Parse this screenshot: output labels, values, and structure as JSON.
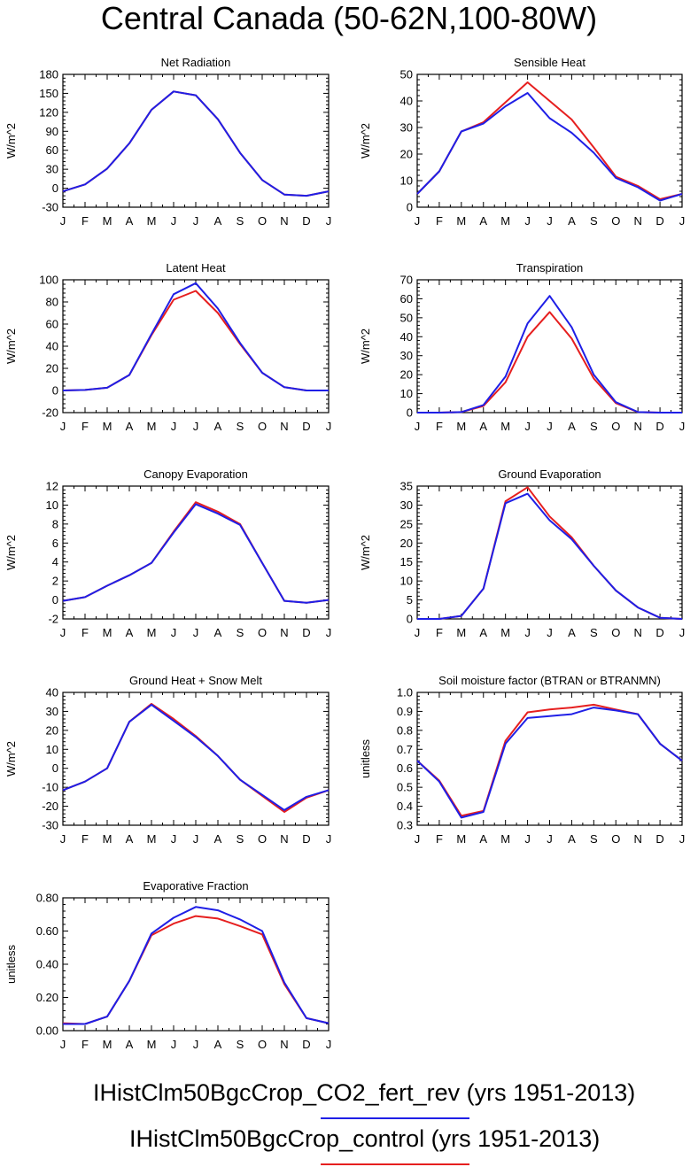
{
  "title": "Central Canada (50-62N,100-80W)",
  "colors": {
    "blue": "#1f1fe6",
    "red": "#e61f1f"
  },
  "legend": {
    "items": [
      {
        "label": "IHistClm50BgcCrop_CO2_fert_rev (yrs 1951-2013)",
        "color": "#1f1fe6"
      },
      {
        "label": "IHistClm50BgcCrop_control (yrs 1951-2013)",
        "color": "#e61f1f"
      }
    ]
  },
  "chart_data": [
    {
      "type": "line",
      "title": "Net Radiation",
      "ylabel": "W/m^2",
      "categories": [
        "J",
        "F",
        "M",
        "A",
        "M",
        "J",
        "J",
        "A",
        "S",
        "O",
        "N",
        "D",
        "J"
      ],
      "ylim": [
        -30,
        180
      ],
      "yticks": [
        -30,
        0,
        30,
        60,
        90,
        120,
        150,
        180
      ],
      "ytick_labels": [
        "-30",
        "0",
        "30",
        "60",
        "90",
        "120",
        "150",
        "180"
      ],
      "series": [
        {
          "color": "red",
          "values": [
            -5,
            6,
            31,
            71,
            124,
            153,
            147,
            109,
            56,
            13,
            -10,
            -12,
            -5
          ]
        },
        {
          "color": "blue",
          "values": [
            -5,
            6,
            31,
            71,
            124,
            153,
            147,
            109,
            56,
            13,
            -10,
            -12,
            -5
          ]
        }
      ]
    },
    {
      "type": "line",
      "title": "Sensible Heat",
      "ylabel": "W/m^2",
      "categories": [
        "J",
        "F",
        "M",
        "A",
        "M",
        "J",
        "J",
        "A",
        "S",
        "O",
        "N",
        "D",
        "J"
      ],
      "ylim": [
        0,
        50
      ],
      "yticks": [
        0,
        10,
        20,
        30,
        40,
        50
      ],
      "ytick_labels": [
        "0",
        "10",
        "20",
        "30",
        "40",
        "50"
      ],
      "series": [
        {
          "color": "red",
          "values": [
            5,
            13.5,
            28.5,
            32,
            39.5,
            47,
            40,
            33,
            22.5,
            11.5,
            8,
            3,
            5
          ]
        },
        {
          "color": "blue",
          "values": [
            5,
            13.5,
            28.5,
            31.5,
            38,
            43,
            33.5,
            28,
            20.5,
            11,
            7.5,
            2.5,
            5
          ]
        }
      ]
    },
    {
      "type": "line",
      "title": "Latent Heat",
      "ylabel": "W/m^2",
      "categories": [
        "J",
        "F",
        "M",
        "A",
        "M",
        "J",
        "J",
        "A",
        "S",
        "O",
        "N",
        "D",
        "J"
      ],
      "ylim": [
        -20,
        100
      ],
      "yticks": [
        -20,
        0,
        20,
        40,
        60,
        80,
        100
      ],
      "ytick_labels": [
        "-20",
        "0",
        "20",
        "40",
        "60",
        "80",
        "100"
      ],
      "series": [
        {
          "color": "red",
          "values": [
            0,
            0.5,
            2.5,
            14,
            50,
            82,
            90,
            70,
            42,
            16,
            3,
            0,
            0
          ]
        },
        {
          "color": "blue",
          "values": [
            0,
            0.5,
            2.5,
            14,
            51,
            87,
            97,
            74,
            43,
            16,
            3,
            0,
            0
          ]
        }
      ]
    },
    {
      "type": "line",
      "title": "Transpiration",
      "ylabel": "W/m^2",
      "categories": [
        "J",
        "F",
        "M",
        "A",
        "M",
        "J",
        "J",
        "A",
        "S",
        "O",
        "N",
        "D",
        "J"
      ],
      "ylim": [
        0,
        70
      ],
      "yticks": [
        0,
        10,
        20,
        30,
        40,
        50,
        60,
        70
      ],
      "ytick_labels": [
        "0",
        "10",
        "20",
        "30",
        "40",
        "50",
        "60",
        "70"
      ],
      "series": [
        {
          "color": "red",
          "values": [
            0,
            0,
            0.3,
            3.5,
            16,
            40,
            53,
            39,
            18,
            5,
            0.3,
            0,
            0
          ]
        },
        {
          "color": "blue",
          "values": [
            0,
            0,
            0.3,
            4,
            19,
            47,
            61.5,
            45,
            20,
            5.5,
            0.3,
            0,
            0
          ]
        }
      ]
    },
    {
      "type": "line",
      "title": "Canopy Evaporation",
      "ylabel": "W/m^2",
      "categories": [
        "J",
        "F",
        "M",
        "A",
        "M",
        "J",
        "J",
        "A",
        "S",
        "O",
        "N",
        "D",
        "J"
      ],
      "ylim": [
        -2,
        12
      ],
      "yticks": [
        -2,
        0,
        2,
        4,
        6,
        8,
        10,
        12
      ],
      "ytick_labels": [
        "-2",
        "0",
        "2",
        "4",
        "6",
        "8",
        "10",
        "12"
      ],
      "series": [
        {
          "color": "red",
          "values": [
            -0.1,
            0.3,
            1.5,
            2.6,
            3.9,
            7.2,
            10.3,
            9.3,
            8,
            3.9,
            -0.1,
            -0.3,
            0
          ]
        },
        {
          "color": "blue",
          "values": [
            -0.1,
            0.3,
            1.5,
            2.6,
            3.9,
            7.1,
            10.1,
            9.1,
            7.9,
            3.9,
            -0.1,
            -0.3,
            0
          ]
        }
      ]
    },
    {
      "type": "line",
      "title": "Ground Evaporation",
      "ylabel": "W/m^2",
      "categories": [
        "J",
        "F",
        "M",
        "A",
        "M",
        "J",
        "J",
        "A",
        "S",
        "O",
        "N",
        "D",
        "J"
      ],
      "ylim": [
        0,
        35
      ],
      "yticks": [
        0,
        5,
        10,
        15,
        20,
        25,
        30,
        35
      ],
      "ytick_labels": [
        "0",
        "5",
        "10",
        "15",
        "20",
        "25",
        "30",
        "35"
      ],
      "series": [
        {
          "color": "red",
          "values": [
            0,
            0,
            0.8,
            8,
            31,
            34.7,
            27,
            21.5,
            14,
            7.5,
            3,
            0.3,
            0
          ]
        },
        {
          "color": "blue",
          "values": [
            0,
            0,
            0.8,
            8,
            30.5,
            33,
            26,
            21,
            14,
            7.5,
            3,
            0.3,
            0
          ]
        }
      ]
    },
    {
      "type": "line",
      "title": "Ground Heat + Snow Melt",
      "ylabel": "W/m^2",
      "categories": [
        "J",
        "F",
        "M",
        "A",
        "M",
        "J",
        "J",
        "A",
        "S",
        "O",
        "N",
        "D",
        "J"
      ],
      "ylim": [
        -30,
        40
      ],
      "yticks": [
        -30,
        -20,
        -10,
        0,
        10,
        20,
        30,
        40
      ],
      "ytick_labels": [
        "-30",
        "-20",
        "-10",
        "0",
        "10",
        "20",
        "30",
        "40"
      ],
      "series": [
        {
          "color": "red",
          "values": [
            -11.5,
            -7,
            0,
            24.5,
            34,
            26,
            17,
            6.5,
            -6,
            -14.5,
            -23,
            -15.5,
            -11.5
          ]
        },
        {
          "color": "blue",
          "values": [
            -11.5,
            -7,
            0,
            24.5,
            33.5,
            25,
            16.5,
            6.5,
            -6,
            -14,
            -22,
            -15,
            -11.5
          ]
        }
      ]
    },
    {
      "type": "line",
      "title": "Soil moisture factor (BTRAN or BTRANMN)",
      "ylabel": "unitless",
      "categories": [
        "J",
        "F",
        "M",
        "A",
        "M",
        "J",
        "J",
        "A",
        "S",
        "O",
        "N",
        "D",
        "J"
      ],
      "ylim": [
        0.3,
        1.0
      ],
      "yticks": [
        0.3,
        0.4,
        0.5,
        0.6,
        0.7,
        0.8,
        0.9,
        1.0
      ],
      "ytick_labels": [
        "0.3",
        "0.4",
        "0.5",
        "0.6",
        "0.7",
        "0.8",
        "0.9",
        "1.0"
      ],
      "series": [
        {
          "color": "red",
          "values": [
            0.64,
            0.535,
            0.35,
            0.375,
            0.745,
            0.895,
            0.91,
            0.92,
            0.935,
            0.91,
            0.885,
            0.73,
            0.64
          ]
        },
        {
          "color": "blue",
          "values": [
            0.64,
            0.53,
            0.34,
            0.37,
            0.73,
            0.865,
            0.875,
            0.885,
            0.92,
            0.905,
            0.885,
            0.73,
            0.64
          ]
        }
      ]
    },
    {
      "type": "line",
      "title": "Evaporative Fraction",
      "ylabel": "unitless",
      "categories": [
        "J",
        "F",
        "M",
        "A",
        "M",
        "J",
        "J",
        "A",
        "S",
        "O",
        "N",
        "D",
        "J"
      ],
      "ylim": [
        0,
        0.8
      ],
      "yticks": [
        0,
        0.2,
        0.4,
        0.6,
        0.8
      ],
      "ytick_labels": [
        "0.00",
        "0.20",
        "0.40",
        "0.60",
        "0.80"
      ],
      "series": [
        {
          "color": "red",
          "values": [
            0.045,
            0.04,
            0.085,
            0.3,
            0.575,
            0.645,
            0.69,
            0.675,
            0.63,
            0.58,
            0.28,
            0.075,
            0.045
          ]
        },
        {
          "color": "blue",
          "values": [
            0.04,
            0.04,
            0.085,
            0.3,
            0.585,
            0.68,
            0.745,
            0.725,
            0.67,
            0.6,
            0.29,
            0.075,
            0.045
          ]
        }
      ]
    }
  ]
}
